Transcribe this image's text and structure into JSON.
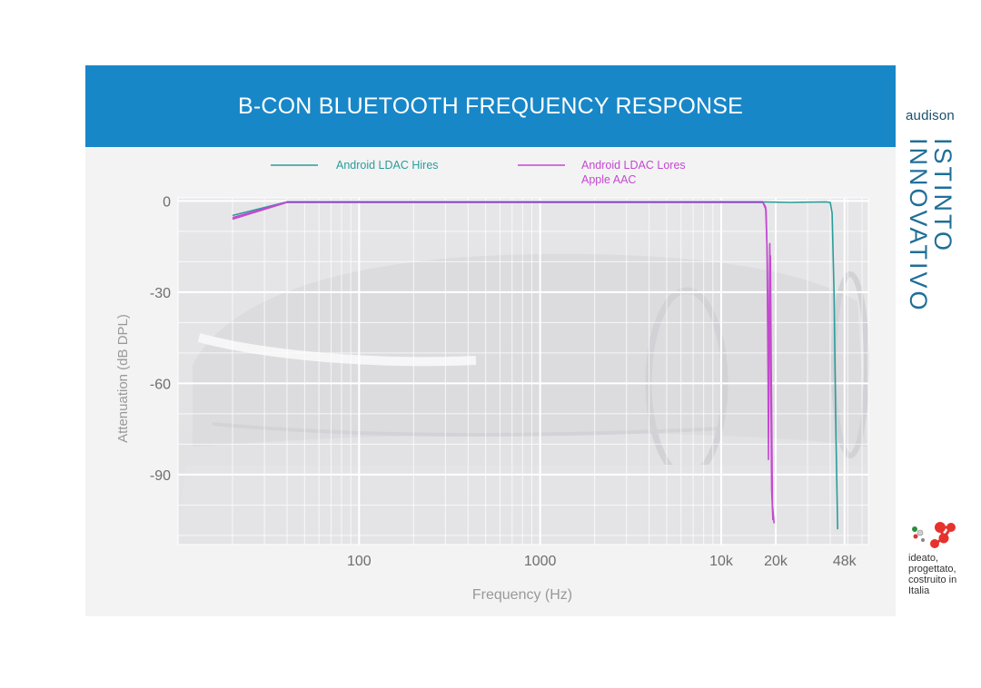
{
  "brand": {
    "name": "audison",
    "tagline_line1": "ISTINTO",
    "tagline_line2": "INNOVATIVO",
    "made_in": "ideato, progettato, costruito in Italia",
    "accent_color": "#1887c8"
  },
  "chart_data": {
    "type": "line",
    "title": "B-CON BLUETOOTH FREQUENCY RESPONSE",
    "xlabel": "Frequency (Hz)",
    "ylabel": "Attenuation (dB DPL)",
    "x_scale": "log",
    "xlim": [
      10,
      65000
    ],
    "ylim": [
      -113,
      1
    ],
    "x_ticks": [
      {
        "value": 100,
        "label": "100"
      },
      {
        "value": 1000,
        "label": "1000"
      },
      {
        "value": 10000,
        "label": "10k"
      },
      {
        "value": 20000,
        "label": "20k"
      },
      {
        "value": 48000,
        "label": "48k"
      }
    ],
    "y_ticks": [
      {
        "value": 0,
        "label": "0"
      },
      {
        "value": -30,
        "label": "-30"
      },
      {
        "value": -60,
        "label": "-60"
      },
      {
        "value": -90,
        "label": "-90"
      }
    ],
    "grid": true,
    "legend_position": "top",
    "series": [
      {
        "name": "Android LDAC Hires",
        "color": "#2a9d9a",
        "points": [
          [
            20,
            -4.8
          ],
          [
            40,
            -0.3
          ],
          [
            100,
            -0.3
          ],
          [
            1000,
            -0.3
          ],
          [
            10000,
            -0.3
          ],
          [
            17000,
            -0.3
          ],
          [
            24000,
            -0.5
          ],
          [
            30000,
            -0.4
          ],
          [
            38000,
            -0.3
          ],
          [
            40000,
            -0.5
          ],
          [
            41000,
            -4
          ],
          [
            42000,
            -30
          ],
          [
            43000,
            -75
          ],
          [
            44000,
            -108
          ]
        ]
      },
      {
        "name": "Android LDAC Lores",
        "color": "#c449d0",
        "points": [
          [
            20,
            -5.5
          ],
          [
            40,
            -0.4
          ],
          [
            100,
            -0.4
          ],
          [
            1000,
            -0.4
          ],
          [
            10000,
            -0.4
          ],
          [
            17000,
            -0.4
          ],
          [
            17600,
            -2
          ],
          [
            17900,
            -15
          ],
          [
            18150,
            -60
          ],
          [
            18250,
            -85
          ],
          [
            18400,
            -40
          ],
          [
            18550,
            -14
          ],
          [
            18800,
            -60
          ],
          [
            19000,
            -95
          ],
          [
            19300,
            -105
          ]
        ]
      },
      {
        "name": "Apple AAC",
        "color": "#c449d0",
        "points": [
          [
            20,
            -6
          ],
          [
            40,
            -0.5
          ],
          [
            100,
            -0.5
          ],
          [
            1000,
            -0.5
          ],
          [
            10000,
            -0.5
          ],
          [
            17000,
            -0.5
          ],
          [
            17700,
            -3
          ],
          [
            18000,
            -20
          ],
          [
            18300,
            -72
          ],
          [
            18500,
            -30
          ],
          [
            18700,
            -18
          ],
          [
            18900,
            -55
          ],
          [
            19200,
            -100
          ],
          [
            19600,
            -106
          ]
        ]
      }
    ]
  }
}
